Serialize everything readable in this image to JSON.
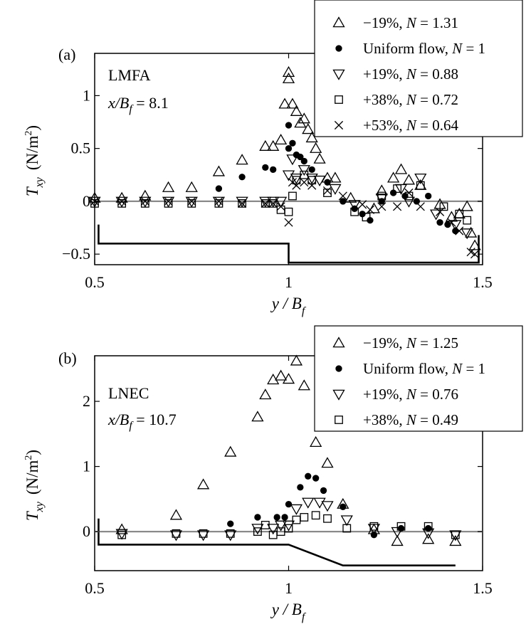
{
  "chart_data": [
    {
      "type": "scatter",
      "panel_label": "(a)",
      "facility": "LMFA",
      "station_label": {
        "prefix": "x/B",
        "sub": "f",
        "suffix": " = 8.1"
      },
      "xlabel": {
        "main": "y / B",
        "sub": "f"
      },
      "ylabel": {
        "main": "T",
        "sub": "xy",
        "unit": "(N/m",
        "unit_sup": "2",
        "unit_close": ")"
      },
      "xlim": [
        0.5,
        1.5
      ],
      "ylim": [
        -0.6,
        1.4
      ],
      "xticks": [
        {
          "value": 0.5,
          "label": "0.5"
        },
        {
          "value": 1,
          "label": "1"
        },
        {
          "value": 1.5,
          "label": "1.5"
        }
      ],
      "yticks": [
        {
          "value": -0.5,
          "label": "−0.5"
        },
        {
          "value": 0,
          "label": "0"
        },
        {
          "value": 0.5,
          "label": "0.5"
        },
        {
          "value": 1,
          "label": "1"
        }
      ],
      "zero_line": 0,
      "legend_position": "top-right, extending above the plot",
      "bed_profile": [
        [
          0.51,
          -0.22
        ],
        [
          0.51,
          -0.4
        ],
        [
          1.0,
          -0.4
        ],
        [
          1.0,
          -0.58
        ],
        [
          1.49,
          -0.58
        ],
        [
          1.49,
          -0.32
        ]
      ],
      "series": [
        {
          "name": "−19%, N = 1.31",
          "marker": "triangle-up",
          "points": [
            [
              0.5,
              0.03
            ],
            [
              0.57,
              0.03
            ],
            [
              0.63,
              0.05
            ],
            [
              0.69,
              0.13
            ],
            [
              0.75,
              0.13
            ],
            [
              0.82,
              0.28
            ],
            [
              0.88,
              0.39
            ],
            [
              0.94,
              0.52
            ],
            [
              0.96,
              0.52
            ],
            [
              0.98,
              0.58
            ],
            [
              0.99,
              0.92
            ],
            [
              1.0,
              1.16
            ],
            [
              1.0,
              1.22
            ],
            [
              1.01,
              0.92
            ],
            [
              1.02,
              0.85
            ],
            [
              1.03,
              0.74
            ],
            [
              1.04,
              0.78
            ],
            [
              1.05,
              0.68
            ],
            [
              1.06,
              0.6
            ],
            [
              1.07,
              0.5
            ],
            [
              1.08,
              0.4
            ],
            [
              1.1,
              0.22
            ],
            [
              1.12,
              0.22
            ],
            [
              1.16,
              0.03
            ],
            [
              1.22,
              -0.07
            ],
            [
              1.24,
              0.1
            ],
            [
              1.27,
              0.22
            ],
            [
              1.29,
              0.3
            ],
            [
              1.31,
              0.2
            ],
            [
              1.34,
              0.15
            ],
            [
              1.39,
              -0.03
            ],
            [
              1.42,
              -0.15
            ],
            [
              1.44,
              -0.12
            ],
            [
              1.46,
              -0.05
            ],
            [
              1.47,
              -0.3
            ],
            [
              1.48,
              -0.42
            ]
          ]
        },
        {
          "name": "Uniform flow, N = 1",
          "marker": "circle-filled",
          "points": [
            [
              0.82,
              0.12
            ],
            [
              0.88,
              0.23
            ],
            [
              0.94,
              0.32
            ],
            [
              0.96,
              0.3
            ],
            [
              1.0,
              0.72
            ],
            [
              1.0,
              0.5
            ],
            [
              1.01,
              0.55
            ],
            [
              1.02,
              0.44
            ],
            [
              1.03,
              0.42
            ],
            [
              1.04,
              0.38
            ],
            [
              1.06,
              0.3
            ],
            [
              1.1,
              0.18
            ],
            [
              1.14,
              0.0
            ],
            [
              1.17,
              -0.07
            ],
            [
              1.19,
              -0.12
            ],
            [
              1.21,
              -0.18
            ],
            [
              1.24,
              0.0
            ],
            [
              1.27,
              0.08
            ],
            [
              1.3,
              0.05
            ],
            [
              1.33,
              0.0
            ],
            [
              1.36,
              0.05
            ],
            [
              1.39,
              -0.2
            ],
            [
              1.41,
              -0.22
            ],
            [
              1.43,
              -0.28
            ]
          ]
        },
        {
          "name": "+19%, N = 0.88",
          "marker": "triangle-down",
          "points": [
            [
              0.5,
              0.0
            ],
            [
              0.57,
              0.0
            ],
            [
              0.63,
              0.0
            ],
            [
              0.69,
              0.0
            ],
            [
              0.75,
              0.0
            ],
            [
              0.82,
              0.0
            ],
            [
              0.88,
              0.0
            ],
            [
              0.94,
              0.0
            ],
            [
              0.96,
              0.0
            ],
            [
              0.98,
              0.0
            ],
            [
              1.0,
              0.25
            ],
            [
              1.01,
              0.4
            ],
            [
              1.02,
              0.22
            ],
            [
              1.04,
              0.3
            ],
            [
              1.06,
              0.22
            ],
            [
              1.08,
              0.2
            ],
            [
              1.12,
              0.12
            ],
            [
              1.17,
              -0.03
            ],
            [
              1.24,
              0.03
            ],
            [
              1.29,
              0.12
            ],
            [
              1.31,
              0.0
            ],
            [
              1.34,
              0.22
            ],
            [
              1.38,
              -0.12
            ],
            [
              1.43,
              -0.22
            ],
            [
              1.46,
              -0.3
            ]
          ]
        },
        {
          "name": "+38%, N = 0.72",
          "marker": "square",
          "points": [
            [
              0.5,
              -0.02
            ],
            [
              0.57,
              -0.02
            ],
            [
              0.63,
              -0.02
            ],
            [
              0.69,
              -0.02
            ],
            [
              0.75,
              -0.02
            ],
            [
              0.82,
              -0.02
            ],
            [
              0.88,
              -0.02
            ],
            [
              0.94,
              -0.02
            ],
            [
              0.96,
              -0.02
            ],
            [
              0.98,
              -0.08
            ],
            [
              1.0,
              -0.1
            ],
            [
              1.01,
              0.05
            ],
            [
              1.02,
              0.2
            ],
            [
              1.04,
              0.25
            ],
            [
              1.06,
              0.2
            ],
            [
              1.1,
              0.08
            ],
            [
              1.17,
              -0.1
            ],
            [
              1.2,
              -0.15
            ],
            [
              1.24,
              0.05
            ],
            [
              1.28,
              0.12
            ],
            [
              1.31,
              0.05
            ],
            [
              1.34,
              0.15
            ],
            [
              1.4,
              -0.05
            ],
            [
              1.44,
              -0.12
            ],
            [
              1.46,
              -0.18
            ]
          ]
        },
        {
          "name": "+53%, N = 0.64",
          "marker": "cross",
          "points": [
            [
              0.5,
              0.0
            ],
            [
              0.57,
              0.0
            ],
            [
              0.63,
              0.0
            ],
            [
              0.69,
              0.0
            ],
            [
              0.75,
              0.0
            ],
            [
              0.82,
              0.0
            ],
            [
              0.88,
              -0.02
            ],
            [
              0.94,
              -0.02
            ],
            [
              0.96,
              -0.02
            ],
            [
              0.98,
              -0.05
            ],
            [
              1.0,
              -0.2
            ],
            [
              1.01,
              0.18
            ],
            [
              1.02,
              0.15
            ],
            [
              1.04,
              0.18
            ],
            [
              1.06,
              0.15
            ],
            [
              1.1,
              0.1
            ],
            [
              1.14,
              0.05
            ],
            [
              1.19,
              -0.03
            ],
            [
              1.21,
              -0.08
            ],
            [
              1.24,
              -0.05
            ],
            [
              1.28,
              -0.05
            ],
            [
              1.31,
              0.08
            ],
            [
              1.34,
              -0.05
            ],
            [
              1.39,
              -0.1
            ],
            [
              1.42,
              -0.2
            ],
            [
              1.44,
              -0.28
            ],
            [
              1.47,
              -0.48
            ],
            [
              1.48,
              -0.5
            ]
          ]
        }
      ]
    },
    {
      "type": "scatter",
      "panel_label": "(b)",
      "facility": "LNEC",
      "station_label": {
        "prefix": "x/B",
        "sub": "f",
        "suffix": " = 10.7"
      },
      "xlabel": {
        "main": "y / B",
        "sub": "f"
      },
      "ylabel": {
        "main": "T",
        "sub": "xy",
        "unit": "(N/m",
        "unit_sup": "2",
        "unit_close": ")"
      },
      "xlim": [
        0.5,
        1.5
      ],
      "ylim": [
        -0.6,
        2.7
      ],
      "xticks": [
        {
          "value": 0.5,
          "label": "0.5"
        },
        {
          "value": 1,
          "label": "1"
        },
        {
          "value": 1.5,
          "label": "1.5"
        }
      ],
      "yticks": [
        {
          "value": 0,
          "label": "0"
        },
        {
          "value": 1,
          "label": "1"
        },
        {
          "value": 2,
          "label": "2"
        }
      ],
      "zero_line": 0,
      "legend_position": "top-right, extending above the plot",
      "bed_profile": [
        [
          0.51,
          0.2
        ],
        [
          0.51,
          -0.2
        ],
        [
          1.0,
          -0.2
        ],
        [
          1.14,
          -0.52
        ],
        [
          1.43,
          -0.52
        ]
      ],
      "series": [
        {
          "name": "−19%, N = 1.25",
          "marker": "triangle-up",
          "points": [
            [
              0.57,
              0.03
            ],
            [
              0.71,
              0.25
            ],
            [
              0.78,
              0.72
            ],
            [
              0.85,
              1.22
            ],
            [
              0.92,
              1.76
            ],
            [
              0.94,
              2.1
            ],
            [
              0.96,
              2.33
            ],
            [
              0.98,
              2.39
            ],
            [
              1.0,
              2.34
            ],
            [
              1.02,
              2.62
            ],
            [
              1.04,
              2.24
            ],
            [
              1.07,
              1.37
            ],
            [
              1.1,
              1.05
            ],
            [
              1.14,
              0.42
            ],
            [
              1.22,
              0.03
            ],
            [
              1.28,
              -0.15
            ],
            [
              1.36,
              -0.12
            ],
            [
              1.43,
              -0.15
            ]
          ]
        },
        {
          "name": "Uniform flow, N = 1",
          "marker": "circle-filled",
          "points": [
            [
              0.85,
              0.12
            ],
            [
              0.92,
              0.22
            ],
            [
              0.97,
              0.22
            ],
            [
              0.99,
              0.22
            ],
            [
              1.0,
              0.42
            ],
            [
              1.03,
              0.68
            ],
            [
              1.05,
              0.85
            ],
            [
              1.07,
              0.82
            ],
            [
              1.09,
              0.63
            ],
            [
              1.14,
              0.38
            ],
            [
              1.22,
              -0.05
            ],
            [
              1.29,
              0.05
            ],
            [
              1.36,
              0.05
            ]
          ]
        },
        {
          "name": "+19%, N = 0.76",
          "marker": "triangle-down",
          "points": [
            [
              0.57,
              -0.03
            ],
            [
              0.71,
              -0.05
            ],
            [
              0.78,
              -0.05
            ],
            [
              0.85,
              -0.05
            ],
            [
              0.92,
              0.05
            ],
            [
              0.96,
              0.05
            ],
            [
              0.98,
              0.1
            ],
            [
              1.0,
              0.1
            ],
            [
              1.02,
              0.35
            ],
            [
              1.05,
              0.45
            ],
            [
              1.08,
              0.45
            ],
            [
              1.1,
              0.4
            ],
            [
              1.15,
              0.18
            ],
            [
              1.22,
              0.05
            ],
            [
              1.28,
              0.0
            ],
            [
              1.36,
              -0.02
            ],
            [
              1.43,
              -0.05
            ]
          ]
        },
        {
          "name": "+38%, N = 0.49",
          "marker": "square",
          "points": [
            [
              0.57,
              -0.05
            ],
            [
              0.71,
              -0.03
            ],
            [
              0.78,
              -0.03
            ],
            [
              0.85,
              -0.03
            ],
            [
              0.92,
              0.0
            ],
            [
              0.94,
              0.1
            ],
            [
              0.96,
              -0.05
            ],
            [
              0.98,
              0.0
            ],
            [
              1.0,
              0.05
            ],
            [
              1.02,
              0.18
            ],
            [
              1.04,
              0.22
            ],
            [
              1.07,
              0.25
            ],
            [
              1.1,
              0.2
            ],
            [
              1.15,
              0.05
            ],
            [
              1.22,
              0.08
            ],
            [
              1.29,
              0.08
            ],
            [
              1.36,
              0.08
            ],
            [
              1.43,
              -0.05
            ]
          ]
        }
      ]
    }
  ]
}
